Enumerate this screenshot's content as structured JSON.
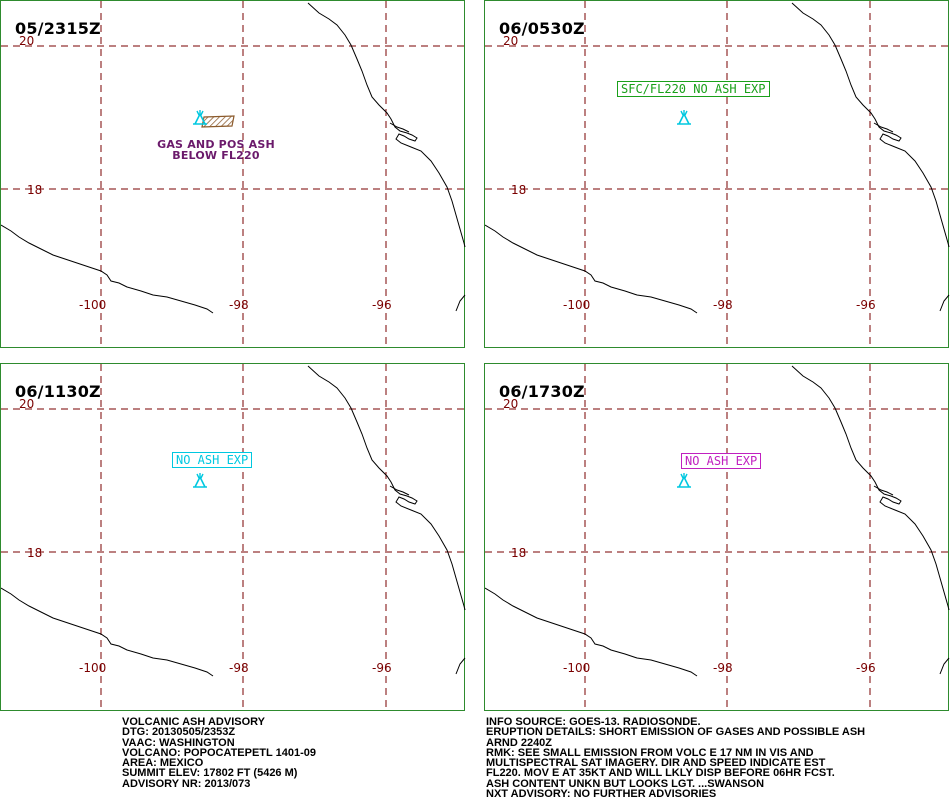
{
  "colors": {
    "frame": "#2e8b2e",
    "grid": "#7a0000",
    "coast": "#000000",
    "volcano": "#00c8e0",
    "ash_area_fill": "#8b5a2b",
    "plume_label": "#6b1a6b"
  },
  "panels": [
    {
      "time": "05/2315Z",
      "lat_labels": [
        "20",
        "18"
      ],
      "lon_labels": [
        "-100",
        "-98",
        "-96"
      ],
      "plume_label_lines": [
        "GAS AND POS ASH",
        "BELOW FL220"
      ],
      "box_label": ""
    },
    {
      "time": "06/0530Z",
      "lat_labels": [
        "20",
        "18"
      ],
      "lon_labels": [
        "-100",
        "-98",
        "-96"
      ],
      "box_label": "SFC/FL220 NO ASH EXP",
      "box_color": "#1aa01a"
    },
    {
      "time": "06/1130Z",
      "lat_labels": [
        "20",
        "18"
      ],
      "lon_labels": [
        "-100",
        "-98",
        "-96"
      ],
      "box_label": "NO ASH EXP",
      "box_color": "#00c8e0"
    },
    {
      "time": "06/1730Z",
      "lat_labels": [
        "20",
        "18"
      ],
      "lon_labels": [
        "-100",
        "-98",
        "-96"
      ],
      "box_label": "NO ASH EXP",
      "box_color": "#c020c0"
    }
  ],
  "advisory_left": [
    "VOLCANIC ASH ADVISORY",
    "DTG: 20130505/2353Z",
    "VAAC: WASHINGTON",
    "VOLCANO: POPOCATEPETL 1401-09",
    "AREA: MEXICO",
    "SUMMIT ELEV: 17802 FT (5426 M)",
    "ADVISORY NR: 2013/073"
  ],
  "advisory_right": [
    "INFO SOURCE: GOES-13. RADIOSONDE.",
    "ERUPTION DETAILS: SHORT EMISSION OF GASES AND POSSIBLE ASH",
    "ARND 2240Z",
    "RMK: SEE SMALL EMISSION FROM VOLC E 17 NM IN VIS AND",
    "MULTISPECTRAL SAT IMAGERY. DIR AND SPEED INDICATE EST",
    "FL220. MOV E AT 35KT AND WILL LKLY DISP BEFORE 06HR FCST.",
    "ASH CONTENT UNKN BUT LOOKS LGT. ...SWANSON",
    "NXT ADVISORY: NO FURTHER ADVISORIES"
  ]
}
